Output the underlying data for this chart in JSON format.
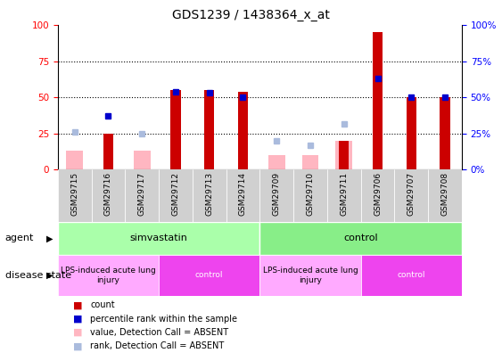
{
  "title": "GDS1239 / 1438364_x_at",
  "samples": [
    "GSM29715",
    "GSM29716",
    "GSM29717",
    "GSM29712",
    "GSM29713",
    "GSM29714",
    "GSM29709",
    "GSM29710",
    "GSM29711",
    "GSM29706",
    "GSM29707",
    "GSM29708"
  ],
  "count_values": [
    0,
    25,
    0,
    55,
    55,
    54,
    0,
    0,
    20,
    95,
    50,
    50
  ],
  "percentile_values": [
    null,
    37,
    null,
    54,
    53,
    50,
    null,
    null,
    null,
    63,
    50,
    50
  ],
  "absent_value_values": [
    13,
    null,
    13,
    null,
    null,
    null,
    10,
    10,
    20,
    null,
    null,
    null
  ],
  "absent_rank_values": [
    26,
    null,
    25,
    null,
    null,
    null,
    20,
    17,
    32,
    null,
    null,
    null
  ],
  "ylim": [
    0,
    100
  ],
  "bar_width": 0.5,
  "count_color": "#CC0000",
  "percentile_color": "#0000CC",
  "absent_value_color": "#FFB6C1",
  "absent_rank_color": "#AABBDD",
  "grid_yticks": [
    0,
    25,
    50,
    75,
    100
  ],
  "agent_simvastatin_color": "#AAFFAA",
  "agent_control_color": "#88EE88",
  "disease_lps_color": "#FFAAFF",
  "disease_control_color": "#EE44EE",
  "legend_items": [
    {
      "label": "count",
      "color": "#CC0000"
    },
    {
      "label": "percentile rank within the sample",
      "color": "#0000CC"
    },
    {
      "label": "value, Detection Call = ABSENT",
      "color": "#FFB6C1"
    },
    {
      "label": "rank, Detection Call = ABSENT",
      "color": "#AABBDD"
    }
  ]
}
